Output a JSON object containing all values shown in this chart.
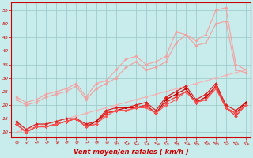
{
  "x": [
    0,
    1,
    2,
    3,
    4,
    5,
    6,
    7,
    8,
    9,
    10,
    11,
    12,
    13,
    14,
    15,
    16,
    17,
    18,
    19,
    20,
    21,
    22,
    23
  ],
  "series": [
    {
      "name": "light_line1",
      "color": "#f5a0a0",
      "linewidth": 0.8,
      "marker": "D",
      "markersize": 1.8,
      "y": [
        23,
        21,
        22,
        24,
        25,
        26,
        28,
        23,
        28,
        29,
        33,
        37,
        38,
        35,
        36,
        38,
        47,
        46,
        44,
        46,
        55,
        56,
        35,
        33
      ]
    },
    {
      "name": "light_line2",
      "color": "#f0a0a0",
      "linewidth": 0.8,
      "marker": "D",
      "markersize": 1.8,
      "y": [
        22,
        20,
        21,
        23,
        24,
        25,
        27,
        22,
        26,
        28,
        30,
        34,
        36,
        33,
        34,
        36,
        43,
        46,
        42,
        43,
        50,
        51,
        33,
        32
      ]
    },
    {
      "name": "light_line3_straight",
      "color": "#f5b0b0",
      "linewidth": 0.8,
      "marker": "D",
      "markersize": 1.5,
      "y": [
        10,
        11,
        12,
        13,
        14,
        15,
        16,
        17,
        18,
        19,
        20,
        21,
        22,
        23,
        24,
        25,
        26,
        27,
        28,
        29,
        30,
        31,
        32,
        33
      ]
    },
    {
      "name": "dark_line1",
      "color": "#dd2222",
      "linewidth": 0.9,
      "marker": "D",
      "markersize": 2.0,
      "y": [
        14,
        11,
        13,
        13,
        14,
        15,
        15,
        13,
        14,
        18,
        19,
        19,
        20,
        21,
        18,
        23,
        25,
        27,
        22,
        24,
        28,
        20,
        18,
        21
      ]
    },
    {
      "name": "dark_line2",
      "color": "#cc0000",
      "linewidth": 0.9,
      "marker": "D",
      "markersize": 2.0,
      "y": [
        13,
        10,
        12,
        12,
        13,
        14,
        15,
        12,
        14,
        17,
        18,
        19,
        19,
        20,
        17,
        22,
        24,
        26,
        21,
        23,
        27,
        19,
        17,
        21
      ]
    },
    {
      "name": "dark_line3",
      "color": "#ee3333",
      "linewidth": 0.9,
      "marker": "D",
      "markersize": 2.0,
      "y": [
        13,
        10,
        12,
        12,
        13,
        14,
        15,
        12,
        13,
        17,
        18,
        18,
        19,
        20,
        17,
        21,
        23,
        25,
        21,
        22,
        27,
        19,
        16,
        20
      ]
    },
    {
      "name": "dark_line4",
      "color": "#ff5555",
      "linewidth": 0.8,
      "marker": "D",
      "markersize": 1.8,
      "y": [
        13,
        10,
        12,
        12,
        13,
        14,
        15,
        12,
        13,
        16,
        18,
        18,
        19,
        19,
        17,
        20,
        22,
        25,
        21,
        22,
        26,
        19,
        17,
        20
      ]
    }
  ],
  "xlabel": "Vent moyen/en rafales ( km/h )",
  "xlim": [
    -0.5,
    23.5
  ],
  "ylim": [
    8,
    58
  ],
  "yticks": [
    10,
    15,
    20,
    25,
    30,
    35,
    40,
    45,
    50,
    55
  ],
  "xticks": [
    0,
    1,
    2,
    3,
    4,
    5,
    6,
    7,
    8,
    9,
    10,
    11,
    12,
    13,
    14,
    15,
    16,
    17,
    18,
    19,
    20,
    21,
    22,
    23
  ],
  "bg_color": "#c8ecec",
  "grid_color": "#a0cccc",
  "label_color": "#cc0000",
  "tick_color": "#cc0000",
  "spine_color": "#cc0000"
}
